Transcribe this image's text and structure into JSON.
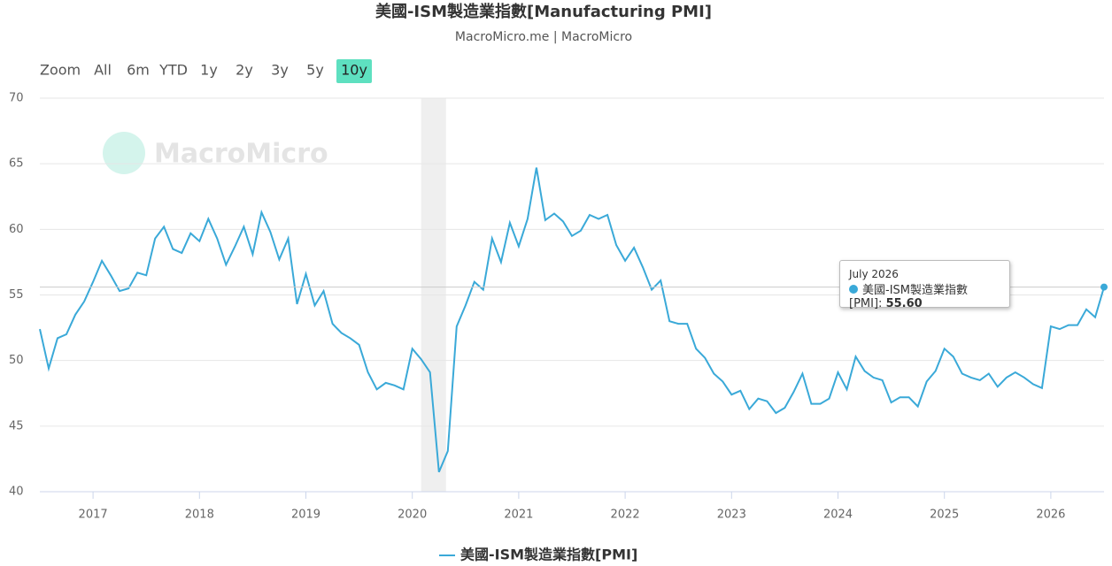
{
  "chart_data": {
    "type": "line",
    "title": "美國-ISM製造業指數[Manufacturing PMI]",
    "subtitle": "MacroMicro.me | MacroMicro",
    "watermark": "MacroMicro",
    "range_selector": {
      "label": "Zoom",
      "buttons": [
        "All",
        "6m",
        "YTD",
        "1y",
        "2y",
        "3y",
        "5y",
        "10y"
      ],
      "selected": 7
    },
    "x": [
      "2016-07",
      "2016-08",
      "2016-09",
      "2016-10",
      "2016-11",
      "2016-12",
      "2017-01",
      "2017-02",
      "2017-03",
      "2017-04",
      "2017-05",
      "2017-06",
      "2017-07",
      "2017-08",
      "2017-09",
      "2017-10",
      "2017-11",
      "2017-12",
      "2018-01",
      "2018-02",
      "2018-03",
      "2018-04",
      "2018-05",
      "2018-06",
      "2018-07",
      "2018-08",
      "2018-09",
      "2018-10",
      "2018-11",
      "2018-12",
      "2019-01",
      "2019-02",
      "2019-03",
      "2019-04",
      "2019-05",
      "2019-06",
      "2019-07",
      "2019-08",
      "2019-09",
      "2019-10",
      "2019-11",
      "2019-12",
      "2020-01",
      "2020-02",
      "2020-03",
      "2020-04",
      "2020-05",
      "2020-06",
      "2020-07",
      "2020-08",
      "2020-09",
      "2020-10",
      "2020-11",
      "2020-12",
      "2021-01",
      "2021-02",
      "2021-03",
      "2021-04",
      "2021-05",
      "2021-06",
      "2021-07",
      "2021-08",
      "2021-09",
      "2021-10",
      "2021-11",
      "2021-12",
      "2022-01",
      "2022-02",
      "2022-03",
      "2022-04",
      "2022-05",
      "2022-06",
      "2022-07",
      "2022-08",
      "2022-09",
      "2022-10",
      "2022-11",
      "2022-12",
      "2023-01",
      "2023-02",
      "2023-03",
      "2023-04",
      "2023-05",
      "2023-06",
      "2023-07",
      "2023-08",
      "2023-09",
      "2023-10",
      "2023-11",
      "2023-12",
      "2024-01",
      "2024-02",
      "2024-03",
      "2024-04",
      "2024-05",
      "2024-06",
      "2024-07",
      "2024-08",
      "2024-09",
      "2024-10",
      "2024-11",
      "2024-12",
      "2025-01",
      "2025-02",
      "2025-03",
      "2025-04",
      "2025-05",
      "2025-06",
      "2025-07",
      "2025-08",
      "2025-09",
      "2025-10",
      "2025-11",
      "2025-12",
      "2026-01",
      "2026-02",
      "2026-03",
      "2026-04",
      "2026-05",
      "2026-06",
      "2026-07"
    ],
    "series": [
      {
        "name": "美國-ISM製造業指數[PMI]",
        "color": "#3aa9d8",
        "values": [
          52.4,
          49.4,
          51.7,
          52.0,
          53.5,
          54.5,
          56.0,
          57.6,
          56.5,
          55.3,
          55.5,
          56.7,
          56.5,
          59.3,
          60.2,
          58.5,
          58.2,
          59.7,
          59.1,
          60.8,
          59.3,
          57.3,
          58.7,
          60.2,
          58.1,
          61.3,
          59.8,
          57.7,
          59.3,
          54.3,
          56.6,
          54.2,
          55.3,
          52.8,
          52.1,
          51.7,
          51.2,
          49.1,
          47.8,
          48.3,
          48.1,
          47.8,
          50.9,
          50.1,
          49.1,
          41.5,
          43.1,
          52.6,
          54.2,
          56.0,
          55.4,
          59.3,
          57.5,
          60.5,
          58.7,
          60.8,
          64.7,
          60.7,
          61.2,
          60.6,
          59.5,
          59.9,
          61.1,
          60.8,
          61.1,
          58.8,
          57.6,
          58.6,
          57.1,
          55.4,
          56.1,
          53.0,
          52.8,
          52.8,
          50.9,
          50.2,
          49.0,
          48.4,
          47.4,
          47.7,
          46.3,
          47.1,
          46.9,
          46.0,
          46.4,
          47.6,
          49.0,
          46.7,
          46.7,
          47.1,
          49.1,
          47.8,
          50.3,
          49.2,
          48.7,
          48.5,
          46.8,
          47.2,
          47.2,
          46.5,
          48.4,
          49.2,
          50.9,
          50.3,
          49.0,
          48.7,
          48.5,
          49.0,
          48.0,
          48.7,
          49.1,
          48.7,
          48.2,
          47.9,
          52.6,
          52.4,
          52.7,
          52.7,
          53.9,
          53.3,
          55.6
        ]
      }
    ],
    "shaded_ranges": [
      [
        "2020-02",
        "2020-04"
      ]
    ],
    "xlim": [
      "2016-07",
      "2026-07"
    ],
    "xticks": [
      {
        "value": "2017-01",
        "label": "2017"
      },
      {
        "value": "2018-01",
        "label": "2018"
      },
      {
        "value": "2019-01",
        "label": "2019"
      },
      {
        "value": "2020-01",
        "label": "2020"
      },
      {
        "value": "2021-01",
        "label": "2021"
      },
      {
        "value": "2022-01",
        "label": "2022"
      },
      {
        "value": "2023-01",
        "label": "2023"
      },
      {
        "value": "2024-01",
        "label": "2024"
      },
      {
        "value": "2025-01",
        "label": "2025"
      },
      {
        "value": "2026-01",
        "label": "2026"
      }
    ],
    "ylim": [
      40,
      70
    ],
    "yticks": [
      40,
      45,
      50,
      55,
      60,
      65,
      70
    ],
    "grid": true,
    "legend": "bottom",
    "tooltip": {
      "title": "July 2026",
      "index": 120,
      "value_label": "55.60"
    }
  }
}
